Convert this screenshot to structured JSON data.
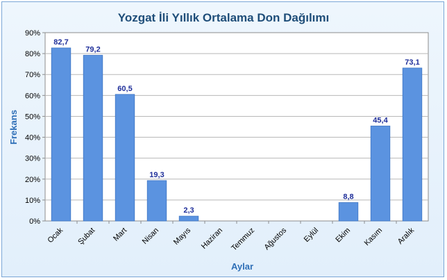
{
  "chart_data": {
    "type": "bar",
    "title": "Yozgat İli Yıllık Ortalama Don Dağılımı",
    "xlabel": "Aylar",
    "ylabel": "Frekans",
    "categories": [
      "Ocak",
      "Şubat",
      "Mart",
      "Nisan",
      "Mayıs",
      "Haziran",
      "Temmuz",
      "Ağustos",
      "Eylül",
      "Ekim",
      "Kasım",
      "Aralık"
    ],
    "values": [
      82.7,
      79.2,
      60.5,
      19.3,
      2.3,
      0,
      0,
      0,
      0,
      8.8,
      45.4,
      73.1
    ],
    "data_labels": [
      "82,7",
      "79,2",
      "60,5",
      "19,3",
      "2,3",
      "",
      "",
      "",
      "",
      "8,8",
      "45,4",
      "73,1"
    ],
    "ylim": [
      0,
      90
    ],
    "yticks": [
      0,
      10,
      20,
      30,
      40,
      50,
      60,
      70,
      80,
      90
    ],
    "ytick_labels": [
      "0%",
      "10%",
      "20%",
      "30%",
      "40%",
      "50%",
      "60%",
      "70%",
      "80%",
      "90%"
    ],
    "grid": true,
    "legend": "none",
    "colors": {
      "bar": "#5b93e0",
      "bar_edge": "#3f76c4",
      "plot_bg": "#ffffff",
      "grid": "#b8b8b8",
      "title": "#1f4e79",
      "axis_title": "#2e6fb7",
      "data_label": "#1f2f9a"
    }
  }
}
